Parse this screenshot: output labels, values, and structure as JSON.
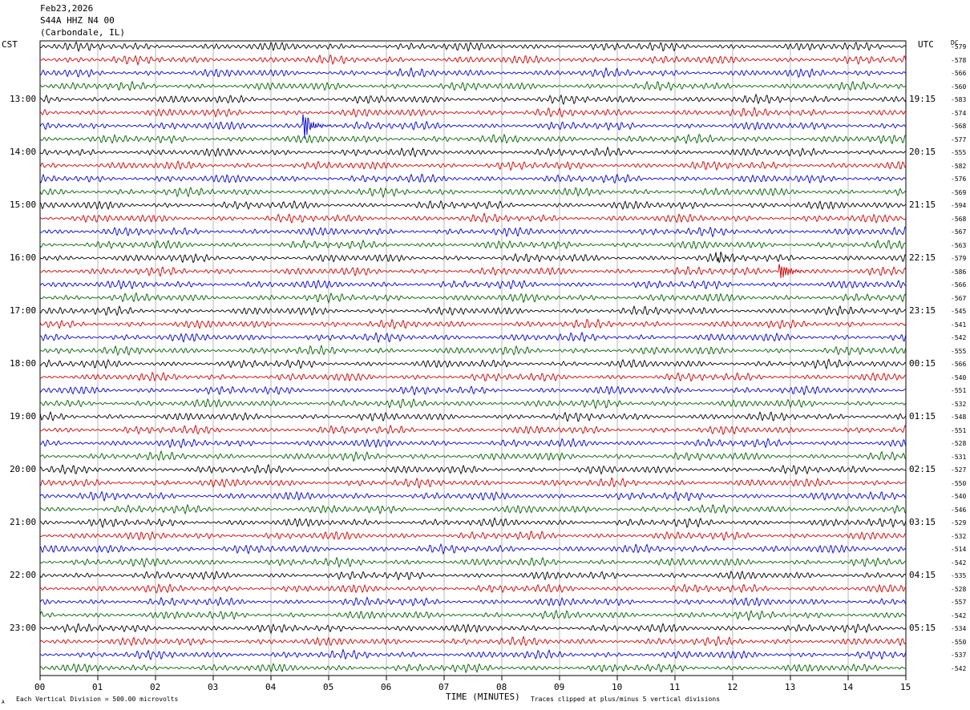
{
  "header": {
    "date": "Feb23,2026",
    "station": "S44A HHZ N4 00",
    "location": "(Carbondale, IL)"
  },
  "labels": {
    "left_tz": "CST",
    "right_tz": "UTC",
    "dc": "DC"
  },
  "footer": {
    "scale_note": "Each Vertical Division =  500.00 microvolts",
    "clip_note": "Traces clipped at plus/minus 5 vertical divisions",
    "corner_mark": "A"
  },
  "colors": {
    "trace_cycle": [
      "#000000",
      "#d00000",
      "#0000d0",
      "#006000"
    ],
    "grid": "#888888",
    "background": "#ffffff"
  },
  "chart_data": {
    "type": "helicorder",
    "xlabel": "TIME (MINUTES)",
    "x_ticks": [
      "00",
      "01",
      "02",
      "03",
      "04",
      "05",
      "06",
      "07",
      "08",
      "09",
      "10",
      "11",
      "12",
      "13",
      "14",
      "15"
    ],
    "xlim": [
      0,
      15
    ],
    "minutes_per_line": 15,
    "n_lines": 48,
    "left_hour_labels": [
      "13:00",
      "14:00",
      "15:00",
      "16:00",
      "17:00",
      "18:00",
      "19:00",
      "20:00",
      "21:00",
      "22:00",
      "23:00"
    ],
    "right_hour_labels": [
      "19:15",
      "20:15",
      "21:15",
      "22:15",
      "23:15",
      "00:15",
      "01:15",
      "02:15",
      "03:15",
      "04:15",
      "05:15"
    ],
    "hour_label_first_line": 4,
    "hour_label_every": 4,
    "dc_offsets": [
      -579,
      -578,
      -566,
      -560,
      -583,
      -574,
      -568,
      -577,
      -555,
      -582,
      -576,
      -569,
      -594,
      -568,
      -567,
      -563,
      -579,
      -586,
      -566,
      -567,
      -545,
      -541,
      -542,
      -555,
      -566,
      -540,
      -551,
      -532,
      -548,
      -551,
      -528,
      -531,
      -527,
      -550,
      -540,
      -546,
      -529,
      -532,
      -514,
      -542,
      -535,
      -528,
      -557,
      -542,
      -534,
      -550,
      -537,
      -542
    ],
    "events": [
      {
        "line": 6,
        "minute": 4.55,
        "amplitude": 2.2
      },
      {
        "line": 6,
        "minute": 4.65,
        "amplitude": 1.4
      },
      {
        "line": 17,
        "minute": 12.8,
        "amplitude": 1.3
      },
      {
        "line": 16,
        "minute": 11.7,
        "amplitude": 0.7
      }
    ]
  }
}
